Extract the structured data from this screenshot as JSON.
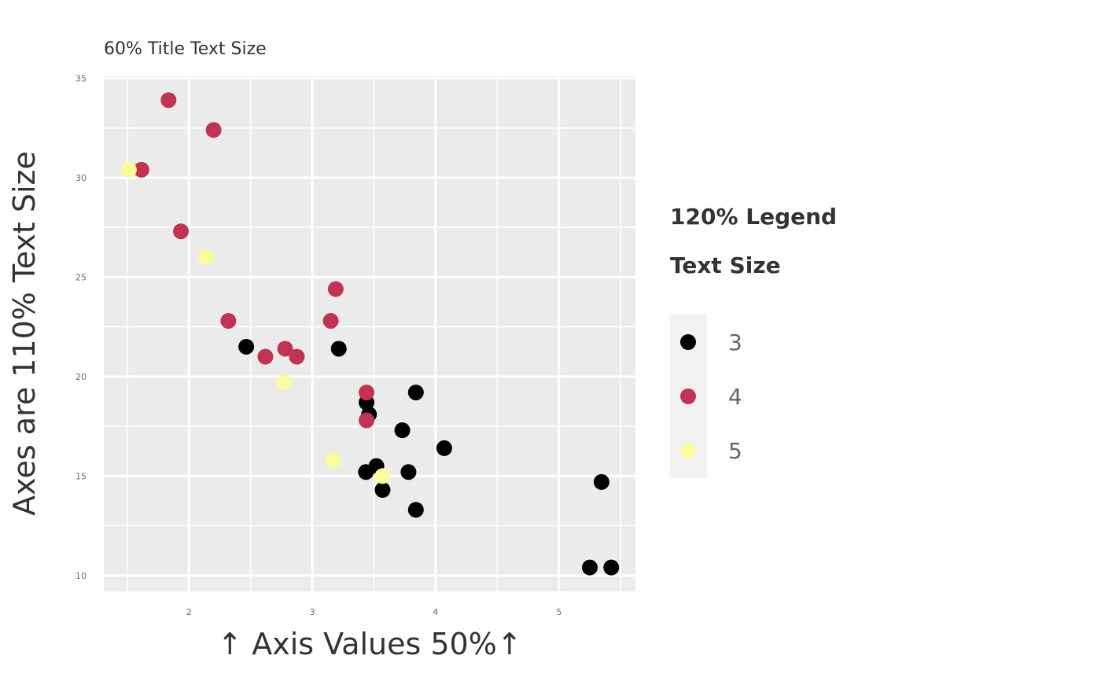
{
  "chart_data": {
    "type": "scatter",
    "title": "60% Title Text Size",
    "xlabel": "↑ Axis Values 50%↑",
    "ylabel": "Axes are 110% Text Size",
    "xlim": [
      1.31,
      5.62
    ],
    "ylim": [
      9.2,
      35.1
    ],
    "x_ticks": [
      2,
      3,
      4,
      5
    ],
    "y_ticks": [
      10,
      15,
      20,
      25,
      30,
      35
    ],
    "grid": true,
    "legend": {
      "title_lines": [
        "120% Legend",
        "Text Size"
      ],
      "placement": "right",
      "entries": [
        {
          "label": "3",
          "color": "#000000"
        },
        {
          "label": "4",
          "color": "#c13352"
        },
        {
          "label": "5",
          "color": "#fafb9c"
        }
      ]
    },
    "colors": {
      "panel": "#ebebeb",
      "grid": "#ffffff",
      "legend_key_bg": "#f2f2f2"
    },
    "series": [
      {
        "name": "3",
        "color": "#000000",
        "points": [
          [
            2.465,
            21.5
          ],
          [
            3.215,
            21.4
          ],
          [
            3.44,
            18.7
          ],
          [
            3.46,
            18.1
          ],
          [
            3.84,
            19.2
          ],
          [
            3.73,
            17.3
          ],
          [
            4.07,
            16.4
          ],
          [
            3.435,
            15.2
          ],
          [
            3.52,
            15.5
          ],
          [
            3.78,
            15.2
          ],
          [
            3.57,
            14.3
          ],
          [
            3.84,
            13.3
          ],
          [
            5.345,
            14.7
          ],
          [
            5.25,
            10.4
          ],
          [
            5.424,
            10.4
          ]
        ]
      },
      {
        "name": "4",
        "color": "#c13352",
        "points": [
          [
            1.835,
            33.9
          ],
          [
            2.2,
            32.4
          ],
          [
            1.615,
            30.4
          ],
          [
            1.935,
            27.3
          ],
          [
            2.32,
            22.8
          ],
          [
            2.62,
            21.0
          ],
          [
            2.78,
            21.4
          ],
          [
            2.875,
            21.0
          ],
          [
            3.19,
            24.4
          ],
          [
            3.15,
            22.8
          ],
          [
            3.44,
            19.2
          ],
          [
            3.44,
            17.8
          ]
        ]
      },
      {
        "name": "5",
        "color": "#fafb9c",
        "points": [
          [
            1.513,
            30.4
          ],
          [
            2.14,
            26.0
          ],
          [
            2.77,
            19.7
          ],
          [
            3.17,
            15.8
          ],
          [
            3.57,
            15.0
          ]
        ]
      }
    ]
  }
}
